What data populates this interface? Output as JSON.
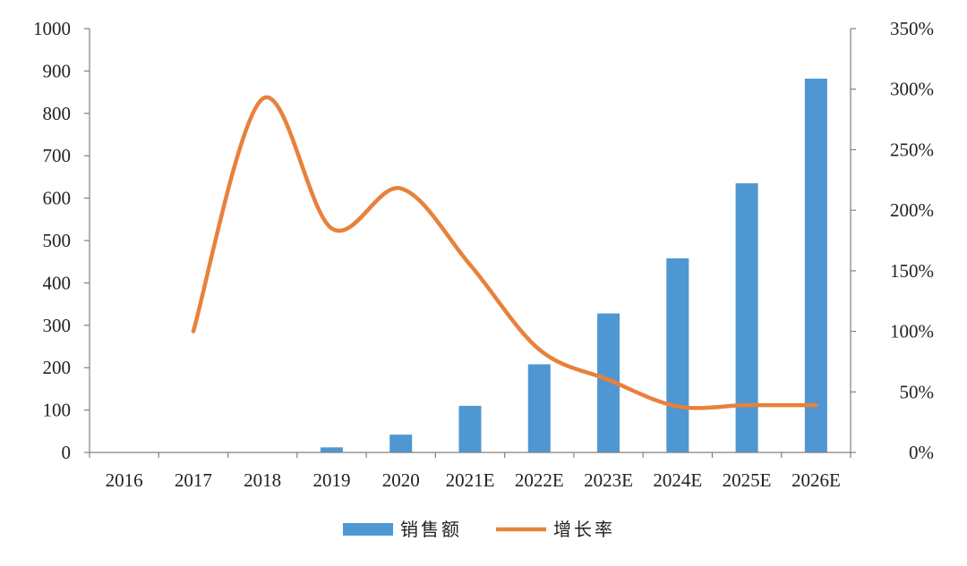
{
  "chart_data": {
    "type": "bar",
    "categories": [
      "2016",
      "2017",
      "2018",
      "2019",
      "2020",
      "2021E",
      "2022E",
      "2023E",
      "2024E",
      "2025E",
      "2026E"
    ],
    "series": [
      {
        "name": "销售额",
        "type": "bar",
        "axis": "left",
        "values": [
          0,
          0,
          0,
          12,
          42,
          110,
          208,
          328,
          458,
          635,
          882
        ]
      },
      {
        "name": "增长率",
        "type": "line",
        "axis": "right",
        "unit": "%",
        "values": [
          null,
          100,
          292,
          185,
          218,
          155,
          85,
          60,
          38,
          39,
          39
        ]
      }
    ],
    "ylim_left": [
      0,
      1000
    ],
    "ylim_right": [
      0,
      350
    ],
    "yticks_left": [
      "0",
      "100",
      "200",
      "300",
      "400",
      "500",
      "600",
      "700",
      "800",
      "900",
      "1000"
    ],
    "yticks_right": [
      "0%",
      "50%",
      "100%",
      "150%",
      "200%",
      "250%",
      "300%",
      "350%"
    ],
    "legend_position": "bottom",
    "grid": false,
    "colors": {
      "bar": "#4f97d2",
      "line": "#e8813b",
      "axis": "#808080"
    }
  }
}
